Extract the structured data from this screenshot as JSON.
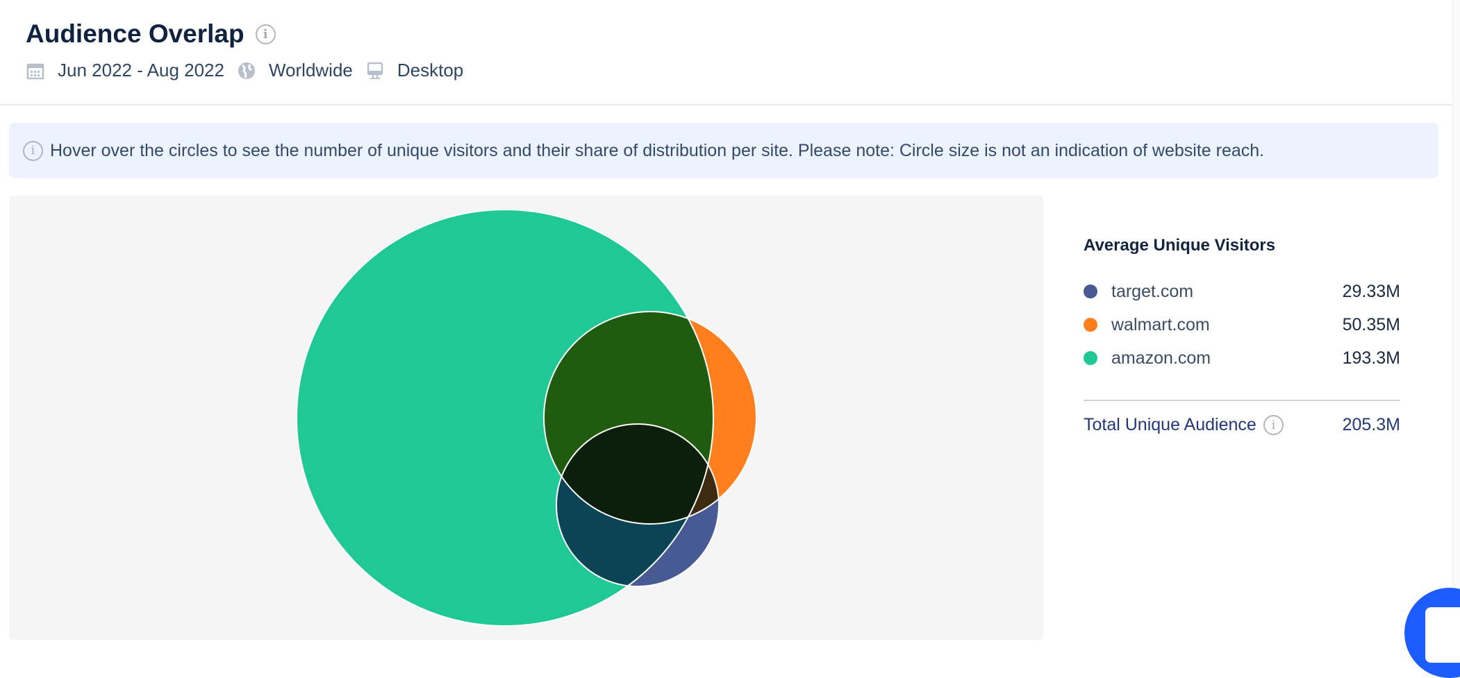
{
  "header": {
    "title": "Audience Overlap",
    "date_range": "Jun 2022 - Aug 2022",
    "region": "Worldwide",
    "device": "Desktop",
    "icons": [
      "calendar-icon",
      "globe-icon",
      "desktop-icon",
      "info-icon"
    ]
  },
  "banner": {
    "text": "Hover over the circles to see the number of unique visitors and their share of distribution per site. Please note: Circle size is not an indication of website reach."
  },
  "legend": {
    "title": "Average Unique Visitors",
    "items": [
      {
        "site": "target.com",
        "value": "29.33M",
        "color": "#475a93"
      },
      {
        "site": "walmart.com",
        "value": "50.35M",
        "color": "#ff7f1e"
      },
      {
        "site": "amazon.com",
        "value": "193.3M",
        "color": "#20c895"
      }
    ],
    "total_label": "Total Unique Audience",
    "total_value": "205.3M"
  },
  "chart_data": {
    "type": "venn",
    "sets": [
      {
        "name": "amazon.com",
        "value_millions": 193.3,
        "color": "#20c895"
      },
      {
        "name": "walmart.com",
        "value_millions": 50.35,
        "color": "#ff7f1e"
      },
      {
        "name": "target.com",
        "value_millions": 29.33,
        "color": "#475a93"
      }
    ],
    "overlap_colors": {
      "amazon.com&walmart.com": "#1f5c10",
      "amazon.com&target.com": "#0a4455",
      "walmart.com&target.com": "#3d2a10",
      "all": "#0b1f0b"
    }
  }
}
